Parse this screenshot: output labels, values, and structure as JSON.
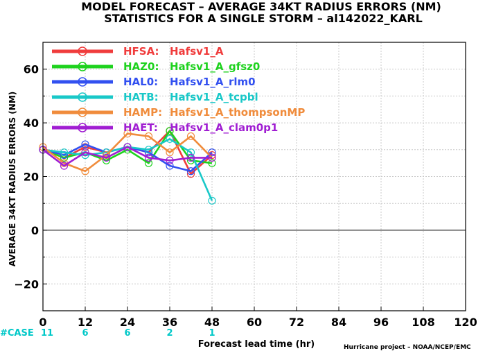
{
  "chart_data": {
    "type": "line",
    "title": "MODEL FORECAST – AVERAGE 34KT RADIUS ERRORS (NM)",
    "subtitle": "STATISTICS FOR A SINGLE STORM – al142022_KARL",
    "xlabel": "Forecast lead time (hr)",
    "ylabel": "AVERAGE 34KT RADIUS ERRORS (NM)",
    "xlim": [
      0,
      120
    ],
    "ylim": [
      -30,
      70
    ],
    "xticks": [
      0,
      12,
      24,
      36,
      48,
      60,
      72,
      84,
      96,
      108,
      120
    ],
    "yticks": [
      -20,
      0,
      20,
      40,
      60
    ],
    "grid": true,
    "legend_position": "top-left",
    "case_label": "#CASE",
    "case_color": "#00c8c8",
    "case_counts": [
      {
        "x": 0,
        "n": "11"
      },
      {
        "x": 12,
        "n": "6"
      },
      {
        "x": 24,
        "n": "6"
      },
      {
        "x": 36,
        "n": "2"
      },
      {
        "x": 48,
        "n": "1"
      }
    ],
    "credit": "Hurricane project – NOAA/NCEP/EMC",
    "x": [
      0,
      6,
      12,
      18,
      24,
      30,
      36,
      42,
      48
    ],
    "series": [
      {
        "code": "HFSA:",
        "name": "Hafsv1_A",
        "color": "#f03c3c",
        "values": [
          30,
          27,
          31,
          29,
          31,
          29,
          37,
          21,
          28
        ]
      },
      {
        "code": "HAZ0:",
        "name": "Hafsv1_A_gfsz0",
        "color": "#1ed21e",
        "values": [
          30,
          27,
          29,
          26,
          30,
          25,
          37,
          26,
          25
        ]
      },
      {
        "code": "HAL0:",
        "name": "Hafsv1_A_rlm0",
        "color": "#3250f0",
        "values": [
          30,
          28,
          32,
          29,
          31,
          29,
          24,
          22,
          29
        ]
      },
      {
        "code": "HATB:",
        "name": "Hafsv1_A_tcpbl",
        "color": "#19c8c8",
        "values": [
          30,
          29,
          28,
          29,
          31,
          30,
          34,
          29,
          11
        ]
      },
      {
        "code": "HAMP:",
        "name": "Hafsv1_A_thompsonMP",
        "color": "#f08c3c",
        "values": [
          31,
          25,
          22,
          28,
          36,
          35,
          29,
          35,
          27
        ]
      },
      {
        "code": "HAET:",
        "name": "Hafsv1_A_clam0p1",
        "color": "#a01ed2",
        "values": [
          30,
          24,
          29,
          27,
          31,
          27,
          26,
          27,
          27
        ]
      }
    ]
  }
}
